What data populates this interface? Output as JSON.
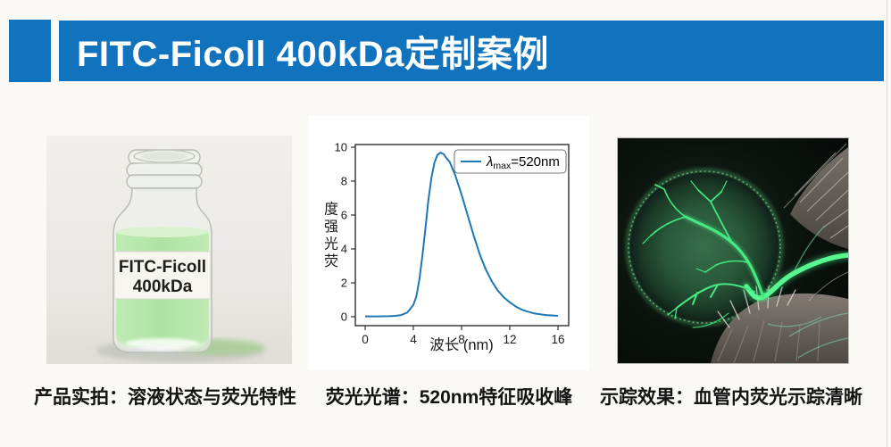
{
  "slide": {
    "title": "FITC-Ficoll 400kDa定制案例",
    "background_color": "#faf9f6",
    "accent_color": "#1173bd",
    "title_text_color": "#ffffff"
  },
  "product_panel": {
    "caption": "产品实拍：溶液状态与荧光特性",
    "vial_label_line1": "FITC-Ficoll",
    "vial_label_line2": "400kDa",
    "liquid_color": "#b2e4a9"
  },
  "spectrum_panel": {
    "caption": "荧光光谱：520nm特征吸收峰"
  },
  "tracing_panel": {
    "caption": "示踪效果：血管内荧光示踪清晰",
    "fluorescence_color": "#3fe57f"
  },
  "chart_data": {
    "type": "line",
    "title": "",
    "xlabel": "波长 (nm)",
    "ylabel": "荧光强度",
    "ylabel_display_chars": [
      "度",
      "强",
      "光",
      "荧"
    ],
    "xlim": [
      0,
      16
    ],
    "ylim": [
      0,
      10
    ],
    "xticks": [
      0,
      4,
      8,
      12,
      16
    ],
    "yticks": [
      0,
      2,
      4,
      6,
      8,
      10
    ],
    "grid": false,
    "legend": {
      "position": "upper-right",
      "full": "λmax=520nm",
      "lambda": "λ",
      "sub": "max",
      "rest": "=520nm"
    },
    "series": [
      {
        "name": "λmax=520nm",
        "color": "#1f77b4",
        "x": [
          0,
          1,
          2,
          2.5,
          3,
          3.5,
          4,
          4.25,
          4.5,
          4.75,
          5,
          5.25,
          5.5,
          5.75,
          6,
          6.25,
          6.5,
          6.75,
          7,
          7.5,
          8,
          8.5,
          9,
          9.5,
          10,
          10.5,
          11,
          11.5,
          12,
          12.5,
          13,
          13.5,
          14,
          15,
          16
        ],
        "y": [
          0.02,
          0.02,
          0.03,
          0.05,
          0.1,
          0.25,
          0.7,
          1.2,
          2.2,
          3.6,
          5.2,
          6.9,
          8.2,
          9.1,
          9.55,
          9.68,
          9.6,
          9.35,
          9.15,
          8.3,
          7.2,
          6.0,
          4.8,
          3.7,
          2.8,
          2.1,
          1.55,
          1.15,
          0.85,
          0.6,
          0.42,
          0.3,
          0.2,
          0.1,
          0.05
        ]
      }
    ]
  }
}
